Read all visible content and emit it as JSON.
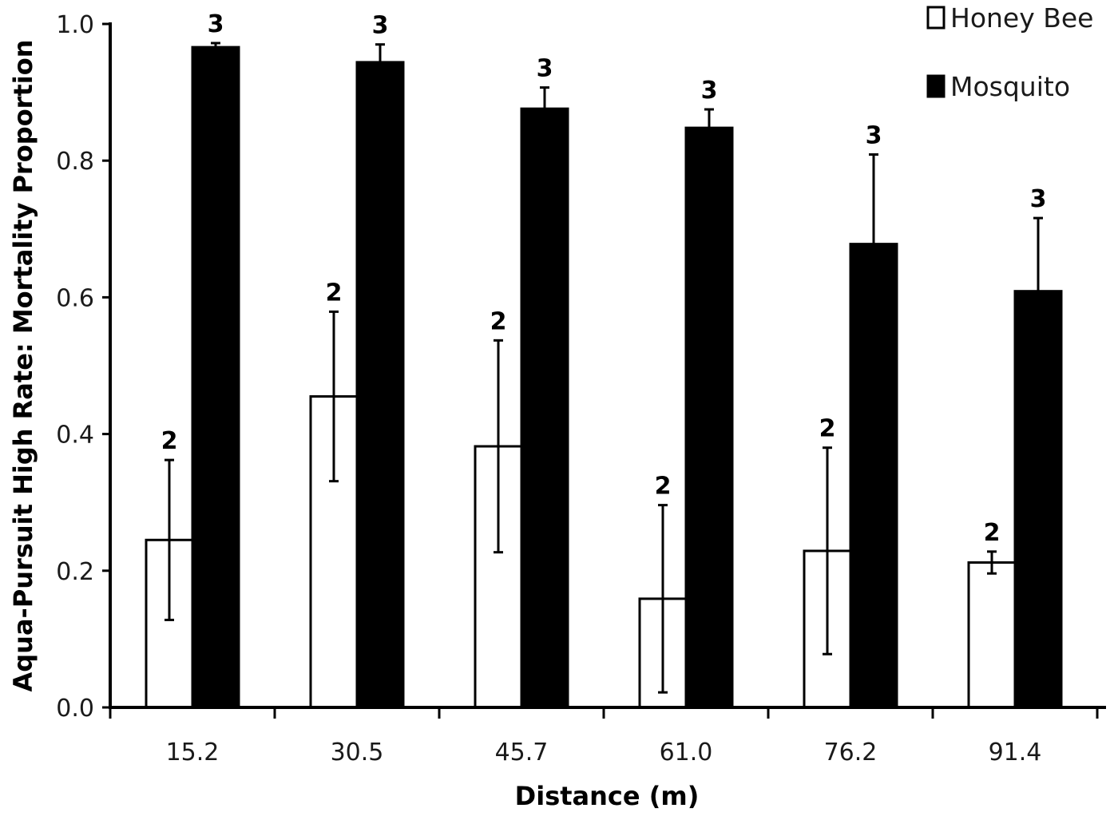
{
  "chart_data": {
    "type": "bar",
    "categories": [
      "15.2",
      "30.5",
      "45.7",
      "61.0",
      "76.2",
      "91.4"
    ],
    "xlabel": "Distance (m)",
    "ylabel": "Aqua-Pursuit High Rate: Mortality Proportion",
    "ylim": [
      0,
      1.0
    ],
    "yticks": [
      "0.0",
      "0.2",
      "0.4",
      "0.6",
      "0.8",
      "1.0"
    ],
    "grid": false,
    "legend_position": "top-right",
    "series": [
      {
        "name": "Honey Bee",
        "fill": "#ffffff",
        "stroke": "#000000",
        "values": [
          0.245,
          0.455,
          0.382,
          0.159,
          0.229,
          0.212
        ],
        "error": [
          0.117,
          0.124,
          0.155,
          0.137,
          0.151,
          0.016
        ],
        "n_labels": [
          "2",
          "2",
          "2",
          "2",
          "2",
          "2"
        ]
      },
      {
        "name": "Mosquito",
        "fill": "#000000",
        "stroke": "#000000",
        "values": [
          0.966,
          0.944,
          0.876,
          0.848,
          0.678,
          0.609
        ],
        "error": [
          0.006,
          0.026,
          0.031,
          0.027,
          0.131,
          0.107
        ],
        "n_labels": [
          "3",
          "3",
          "3",
          "3",
          "3",
          "3"
        ]
      }
    ]
  }
}
